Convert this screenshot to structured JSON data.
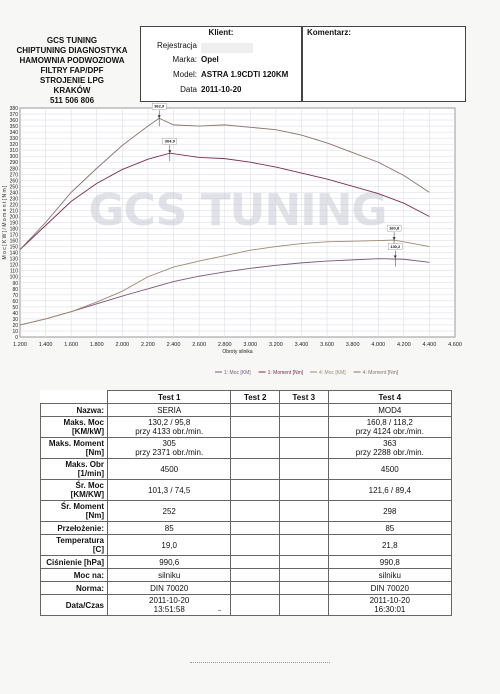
{
  "company": {
    "lines": [
      "GCS TUNING",
      "CHIPTUNING DIAGNOSTYKA",
      "HAMOWNIA PODWOZIOWA",
      "FILTRY FAP/DPF",
      "STROJENIE LPG",
      "KRAKÓW",
      "511 506 806"
    ]
  },
  "client": {
    "title": "Klient:",
    "registration_label": "Rejestracja",
    "make_label": "Marka:",
    "make_value": "Opel",
    "model_label": "Model:",
    "model_value": "ASTRA 1.9CDTI 120KM",
    "date_label": "Data",
    "date_value": "2011-10-20"
  },
  "comment": {
    "label": "Komentarz:"
  },
  "colors": {
    "stock_power": "#7a5a7a",
    "tuned_power": "#a08a70",
    "stock_torque": "#7a3050",
    "tuned_torque": "#8a7468",
    "watermark": "#c8ccd6"
  },
  "chart_data": {
    "type": "line",
    "watermark": "GCS TUNING",
    "xlabel": "Obroty silnika",
    "ylabel": "M o c  [ K W ] / M o m e n t  [ N m ]",
    "xlim": [
      1200,
      4600
    ],
    "ylim": [
      0,
      380
    ],
    "x_ticks": [
      "1.200",
      "1.400",
      "1.600",
      "1.800",
      "2.000",
      "2.200",
      "2.400",
      "2.600",
      "2.800",
      "3.000",
      "3.200",
      "3.400",
      "3.600",
      "3.800",
      "4.000",
      "4.200",
      "4.400",
      "4.600"
    ],
    "y_ticks": [
      0,
      10,
      20,
      30,
      40,
      50,
      60,
      70,
      80,
      90,
      100,
      110,
      120,
      130,
      140,
      150,
      160,
      170,
      180,
      190,
      200,
      210,
      220,
      230,
      240,
      250,
      260,
      270,
      280,
      290,
      300,
      310,
      320,
      330,
      340,
      350,
      360,
      370,
      380
    ],
    "grid": true,
    "legend": "bottom",
    "series": [
      {
        "name": "1: Moc [KM]",
        "x": [
          1200,
          1400,
          1600,
          1800,
          2000,
          2200,
          2400,
          2600,
          2800,
          3000,
          3200,
          3400,
          3600,
          3800,
          4000,
          4200,
          4400
        ],
        "y": [
          20,
          30,
          42,
          55,
          68,
          80,
          92,
          101,
          108,
          114,
          119,
          123,
          126,
          128,
          130,
          129,
          124
        ]
      },
      {
        "name": "1: Moment [Nm]",
        "x": [
          1200,
          1400,
          1600,
          1800,
          2000,
          2200,
          2371,
          2600,
          2800,
          3000,
          3200,
          3400,
          3600,
          3800,
          4000,
          4200,
          4400
        ],
        "y": [
          145,
          185,
          225,
          255,
          278,
          295,
          305,
          298,
          296,
          290,
          282,
          272,
          262,
          250,
          238,
          222,
          200
        ]
      },
      {
        "name": "4: Moc [KM]",
        "x": [
          1200,
          1400,
          1600,
          1800,
          2000,
          2200,
          2400,
          2600,
          2800,
          3000,
          3200,
          3400,
          3600,
          3800,
          4000,
          4124,
          4400
        ],
        "y": [
          20,
          30,
          42,
          58,
          76,
          100,
          116,
          126,
          135,
          144,
          150,
          155,
          158,
          159,
          160,
          160.8,
          150
        ]
      },
      {
        "name": "4: Moment [Nm]",
        "x": [
          1200,
          1400,
          1600,
          1800,
          2000,
          2200,
          2288,
          2400,
          2600,
          2800,
          3000,
          3200,
          3400,
          3600,
          3800,
          4000,
          4200,
          4400
        ],
        "y": [
          145,
          190,
          240,
          280,
          318,
          350,
          363,
          352,
          350,
          352,
          348,
          344,
          335,
          322,
          306,
          290,
          268,
          240
        ]
      }
    ],
    "annotations": [
      {
        "label": "362,9",
        "x": 2288,
        "y": 363
      },
      {
        "label": "304,9",
        "x": 2371,
        "y": 305
      },
      {
        "label": "160,8",
        "x": 4124,
        "y": 160.8
      },
      {
        "label": "130,2",
        "x": 4133,
        "y": 130.2
      }
    ]
  },
  "table": {
    "headers": [
      "",
      "Test 1",
      "Test 2",
      "Test 3",
      "Test 4"
    ],
    "rows": [
      {
        "label": "Nazwa:",
        "t1": "SERIA",
        "t4": "MOD4"
      },
      {
        "label": "Maks. Moc [KM/kW]",
        "t1": "130,2 / 95,8\nprzy 4133 obr./min.",
        "t4": "160,8 / 118,2\nprzy 4124 obr./min."
      },
      {
        "label": "Maks. Moment [Nm]",
        "t1": "305\nprzy 2371 obr./min.",
        "t4": "363\nprzy 2288 obr./min."
      },
      {
        "label": "Maks. Obr [1/min]",
        "t1": "4500",
        "t4": "4500"
      },
      {
        "label": "Śr. Moc [KM/KW]",
        "t1": "101,3 / 74,5",
        "t4": "121,6 / 89,4"
      },
      {
        "label": "Śr. Moment [Nm]",
        "t1": "252",
        "t4": "298"
      },
      {
        "label": "Przełożenie:",
        "t1": "85",
        "t4": "85"
      },
      {
        "label": "Temperatura [C]",
        "t1": "19,0",
        "t4": "21,8"
      },
      {
        "label": "Ciśnienie [hPa]",
        "t1": "990,6",
        "t4": "990,8"
      },
      {
        "label": "Moc na:",
        "t1": "silniku",
        "t4": "silniku"
      },
      {
        "label": "Norma:",
        "t1": "DIN 70020",
        "t4": "DIN 70020"
      },
      {
        "label": "Data/Czas",
        "t1": "2011-10-20\n13:51:58",
        "t4": "2011-10-20\n16:30:01"
      }
    ]
  }
}
